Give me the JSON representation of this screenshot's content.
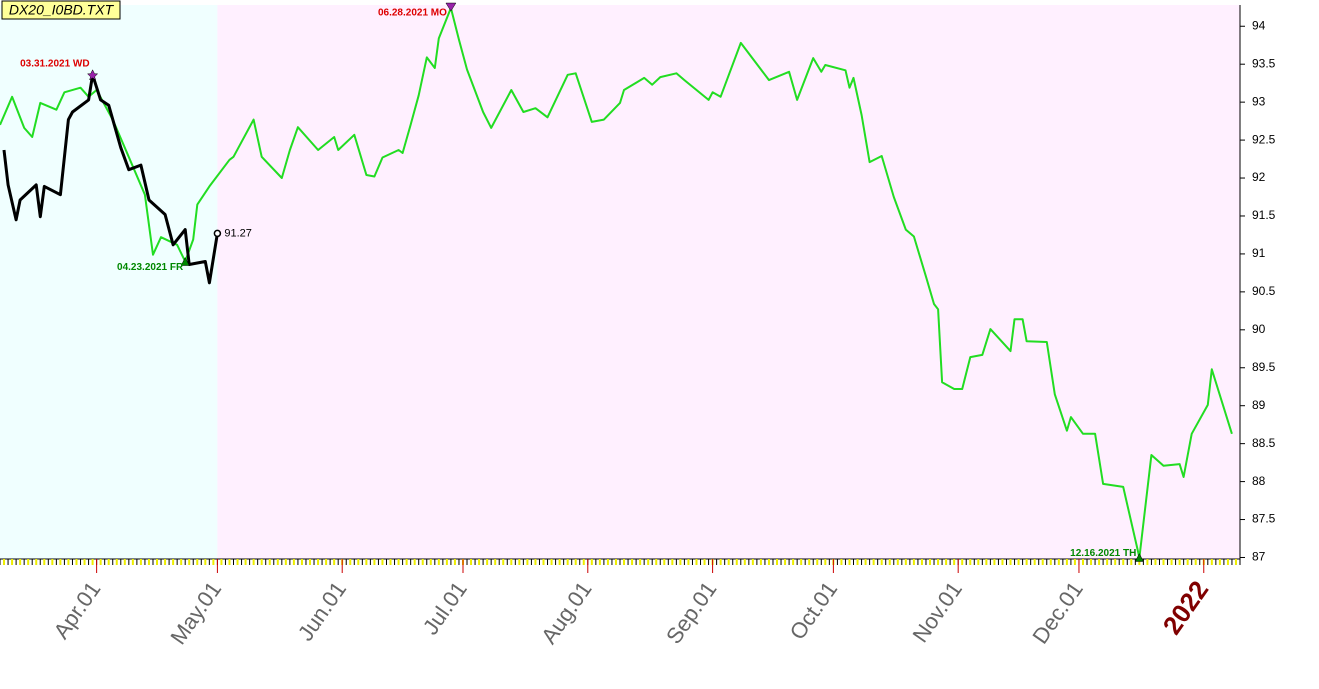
{
  "chart_data": {
    "type": "line",
    "title": "DX20_I0BD.TXT",
    "xlim": [
      "2021-03-08",
      "2022-01-10"
    ],
    "xticks": [
      {
        "value": "2021-04-01",
        "label": "Apr.01"
      },
      {
        "value": "2021-05-01",
        "label": "May.01"
      },
      {
        "value": "2021-06-01",
        "label": "Jun.01"
      },
      {
        "value": "2021-07-01",
        "label": "Jul.01"
      },
      {
        "value": "2021-08-01",
        "label": "Aug.01"
      },
      {
        "value": "2021-09-01",
        "label": "Sep.01"
      },
      {
        "value": "2021-10-01",
        "label": "Oct.01"
      },
      {
        "value": "2021-11-01",
        "label": "Nov.01"
      },
      {
        "value": "2021-12-01",
        "label": "Dec.01"
      },
      {
        "value": "2022-01-01",
        "label": "2022"
      }
    ],
    "ylim": [
      86.98,
      94.28
    ],
    "yticks": [
      87,
      87.5,
      88,
      88.5,
      89,
      89.5,
      90,
      90.5,
      91,
      91.5,
      92,
      92.5,
      93,
      93.5,
      94
    ],
    "series": [
      {
        "color": "#22dd22",
        "x": [
          "2021-03-08",
          "2021-03-11",
          "2021-03-14",
          "2021-03-16",
          "2021-03-18",
          "2021-03-22",
          "2021-03-24",
          "2021-03-28",
          "2021-03-30",
          "2021-04-01",
          "2021-04-05",
          "2021-04-08",
          "2021-04-13",
          "2021-04-15",
          "2021-04-17",
          "2021-04-21",
          "2021-04-23",
          "2021-04-25",
          "2021-04-26",
          "2021-04-29",
          "2021-05-04",
          "2021-05-05",
          "2021-05-10",
          "2021-05-12",
          "2021-05-17",
          "2021-05-19",
          "2021-05-21",
          "2021-05-26",
          "2021-05-30",
          "2021-05-31",
          "2021-06-04",
          "2021-06-07",
          "2021-06-09",
          "2021-06-11",
          "2021-06-15",
          "2021-06-16",
          "2021-06-18",
          "2021-06-20",
          "2021-06-22",
          "2021-06-24",
          "2021-06-25",
          "2021-06-28",
          "2021-06-30",
          "2021-07-02",
          "2021-07-06",
          "2021-07-08",
          "2021-07-13",
          "2021-07-16",
          "2021-07-19",
          "2021-07-22",
          "2021-07-27",
          "2021-07-29",
          "2021-08-02",
          "2021-08-05",
          "2021-08-09",
          "2021-08-10",
          "2021-08-15",
          "2021-08-17",
          "2021-08-19",
          "2021-08-23",
          "2021-08-25",
          "2021-08-31",
          "2021-09-01",
          "2021-09-03",
          "2021-09-08",
          "2021-09-15",
          "2021-09-20",
          "2021-09-22",
          "2021-09-26",
          "2021-09-28",
          "2021-09-29",
          "2021-10-04",
          "2021-10-05",
          "2021-10-06",
          "2021-10-08",
          "2021-10-10",
          "2021-10-13",
          "2021-10-16",
          "2021-10-19",
          "2021-10-21",
          "2021-10-24",
          "2021-10-26",
          "2021-10-27",
          "2021-10-28",
          "2021-10-31",
          "2021-11-02",
          "2021-11-04",
          "2021-11-07",
          "2021-11-09",
          "2021-11-14",
          "2021-11-15",
          "2021-11-17",
          "2021-11-18",
          "2021-11-23",
          "2021-11-25",
          "2021-11-28",
          "2021-11-29",
          "2021-12-02",
          "2021-12-05",
          "2021-12-07",
          "2021-12-12",
          "2021-12-16",
          "2021-12-19",
          "2021-12-22",
          "2021-12-26",
          "2021-12-27",
          "2021-12-29",
          "2022-01-02",
          "2022-01-03",
          "2022-01-08"
        ],
        "values": [
          92.7,
          93.07,
          92.66,
          92.54,
          92.99,
          92.9,
          93.13,
          93.19,
          93.07,
          93.16,
          92.77,
          92.4,
          91.78,
          90.99,
          91.22,
          91.12,
          90.9,
          91.19,
          91.65,
          91.89,
          92.24,
          92.28,
          92.77,
          92.28,
          92.0,
          92.37,
          92.67,
          92.37,
          92.54,
          92.37,
          92.57,
          92.04,
          92.02,
          92.27,
          92.37,
          92.33,
          92.7,
          93.09,
          93.59,
          93.45,
          93.84,
          94.24,
          93.82,
          93.43,
          92.87,
          92.66,
          93.16,
          92.87,
          92.92,
          92.8,
          93.36,
          93.38,
          92.74,
          92.77,
          92.99,
          93.16,
          93.32,
          93.23,
          93.33,
          93.38,
          93.29,
          93.03,
          93.13,
          93.07,
          93.78,
          93.29,
          93.4,
          93.03,
          93.58,
          93.4,
          93.49,
          93.42,
          93.19,
          93.32,
          92.83,
          92.21,
          92.29,
          91.75,
          91.32,
          91.23,
          90.7,
          90.34,
          90.27,
          89.31,
          89.22,
          89.22,
          89.64,
          89.67,
          90.01,
          89.72,
          90.14,
          90.14,
          89.85,
          89.84,
          89.15,
          88.67,
          88.85,
          88.63,
          88.63,
          87.97,
          87.93,
          87.0,
          88.35,
          88.21,
          88.23,
          88.06,
          88.63,
          89.01,
          89.48,
          88.63
        ]
      },
      {
        "color": "#000000",
        "x": [
          "2021-03-09",
          "2021-03-10",
          "2021-03-12",
          "2021-03-13",
          "2021-03-17",
          "2021-03-18",
          "2021-03-19",
          "2021-03-23",
          "2021-03-25",
          "2021-03-26",
          "2021-03-30",
          "2021-03-31",
          "2021-04-02",
          "2021-04-04",
          "2021-04-07",
          "2021-04-09",
          "2021-04-12",
          "2021-04-14",
          "2021-04-18",
          "2021-04-20",
          "2021-04-23",
          "2021-04-24",
          "2021-04-28",
          "2021-04-29",
          "2021-05-01"
        ],
        "values": [
          92.37,
          91.91,
          91.45,
          91.71,
          91.91,
          91.49,
          91.89,
          91.78,
          92.77,
          92.87,
          93.03,
          93.36,
          93.03,
          92.96,
          92.4,
          92.11,
          92.17,
          91.71,
          91.52,
          91.12,
          91.32,
          90.86,
          90.9,
          90.62,
          91.27
        ]
      }
    ],
    "annotations": [
      {
        "text": "03.31.2021 WD",
        "x": "2021-03-31",
        "y": 93.36,
        "color": "#dd0000",
        "marker": "star"
      },
      {
        "text": "04.23.2021 FR",
        "x": "2021-04-23",
        "y": 90.9,
        "color": "#008800",
        "marker": "up"
      },
      {
        "text": "06.28.2021 MO",
        "x": "2021-06-28",
        "y": 94.24,
        "color": "#dd0000",
        "marker": "down"
      },
      {
        "text": "12.16.2021 TH",
        "x": "2021-12-16",
        "y": 87.0,
        "color": "#008800",
        "marker": "up"
      }
    ]
  }
}
